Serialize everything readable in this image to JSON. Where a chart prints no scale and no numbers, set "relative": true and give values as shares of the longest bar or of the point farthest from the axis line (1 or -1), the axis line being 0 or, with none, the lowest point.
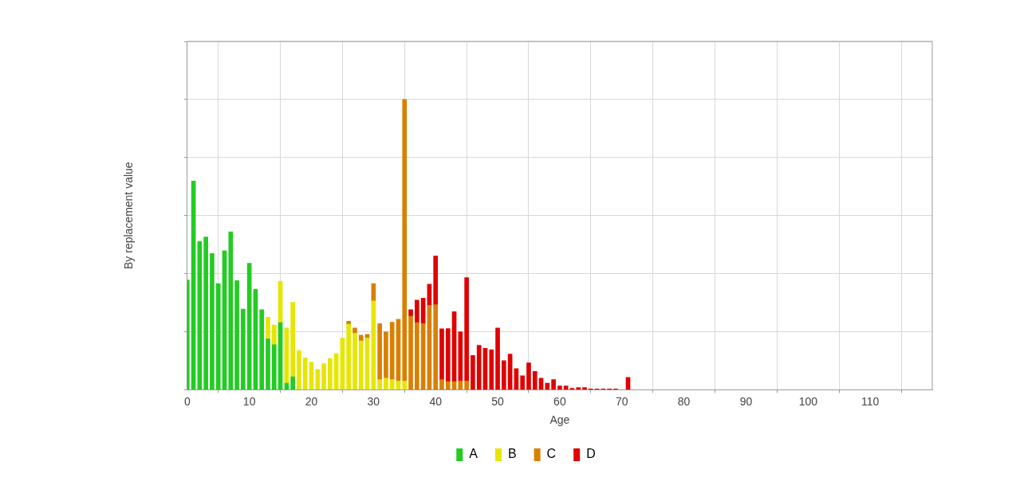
{
  "chart_data": {
    "type": "bar",
    "stacked": true,
    "relative": true,
    "xlabel": "Age",
    "ylabel": "By replacement value",
    "xlim": [
      0,
      120
    ],
    "xticks": [
      0,
      10,
      20,
      30,
      40,
      50,
      60,
      70,
      80,
      90,
      100,
      110
    ],
    "grid": true,
    "legend": "bottom",
    "x": [
      0,
      1,
      2,
      3,
      4,
      5,
      6,
      7,
      8,
      9,
      10,
      11,
      12,
      13,
      14,
      15,
      16,
      17,
      18,
      19,
      20,
      21,
      22,
      23,
      24,
      25,
      26,
      27,
      28,
      29,
      30,
      31,
      32,
      33,
      34,
      35,
      36,
      37,
      38,
      39,
      40,
      41,
      42,
      43,
      44,
      45,
      46,
      47,
      48,
      49,
      50,
      51,
      52,
      53,
      54,
      55,
      56,
      57,
      58,
      59,
      60,
      61,
      62,
      63,
      64,
      65,
      66,
      67,
      68,
      69,
      70,
      71
    ],
    "series": [
      {
        "name": "A",
        "color": "#22cc22",
        "values": [
          0.378,
          0.719,
          0.511,
          0.526,
          0.469,
          0.366,
          0.479,
          0.544,
          0.376,
          0.278,
          0.436,
          0.346,
          0.276,
          0.175,
          0.155,
          0.231,
          0.023,
          0.045,
          null,
          null,
          null,
          null,
          null,
          null,
          null,
          null,
          null,
          null,
          null,
          null,
          null,
          null,
          null,
          null,
          null,
          null,
          null,
          null,
          null,
          null,
          null,
          null,
          null,
          null,
          null,
          null,
          null,
          null,
          null,
          null,
          null,
          null,
          null,
          null,
          null,
          null,
          null,
          null,
          null,
          null,
          null,
          null,
          null,
          null,
          null,
          null,
          null,
          null,
          null,
          null,
          null,
          null
        ]
      },
      {
        "name": "B",
        "color": "#e6e600",
        "values": [
          null,
          null,
          null,
          null,
          null,
          null,
          null,
          null,
          null,
          null,
          null,
          null,
          null,
          0.075,
          0.068,
          0.143,
          0.19,
          0.256,
          0.135,
          0.11,
          0.095,
          0.07,
          0.09,
          0.108,
          0.125,
          0.178,
          0.226,
          0.195,
          0.168,
          0.178,
          0.306,
          0.035,
          0.04,
          0.035,
          0.03,
          0.03,
          null,
          null,
          null,
          null,
          null,
          null,
          null,
          null,
          null,
          null,
          null,
          null,
          null,
          null,
          null,
          null,
          null,
          null,
          null,
          null,
          null,
          null,
          null,
          null,
          null,
          null,
          null,
          null,
          null,
          null,
          null,
          null,
          null,
          null,
          null,
          null
        ]
      },
      {
        "name": "C",
        "color": "#d98000",
        "values": [
          null,
          null,
          null,
          null,
          null,
          null,
          null,
          null,
          null,
          null,
          null,
          null,
          null,
          null,
          null,
          null,
          null,
          null,
          null,
          null,
          null,
          null,
          null,
          null,
          null,
          null,
          0.01,
          0.018,
          0.02,
          0.013,
          0.06,
          0.193,
          0.16,
          0.198,
          0.213,
          0.97,
          0.253,
          0.231,
          0.228,
          0.291,
          0.293,
          0.035,
          0.028,
          0.028,
          0.03,
          0.03,
          null,
          null,
          null,
          null,
          null,
          null,
          null,
          null,
          null,
          null,
          null,
          null,
          null,
          null,
          null,
          null,
          null,
          null,
          null,
          null,
          null,
          null,
          null,
          null,
          null,
          null
        ]
      },
      {
        "name": "D",
        "color": "#e00000",
        "values": [
          null,
          null,
          null,
          null,
          null,
          null,
          null,
          null,
          null,
          null,
          null,
          null,
          null,
          null,
          null,
          null,
          null,
          null,
          null,
          null,
          null,
          null,
          null,
          null,
          null,
          null,
          null,
          null,
          null,
          null,
          null,
          null,
          null,
          null,
          null,
          null,
          0.023,
          0.078,
          0.088,
          0.073,
          0.168,
          0.175,
          0.183,
          0.241,
          0.17,
          0.356,
          0.118,
          0.153,
          0.143,
          0.138,
          0.213,
          0.1,
          0.123,
          0.073,
          0.048,
          0.093,
          0.063,
          0.04,
          0.023,
          0.035,
          0.013,
          0.013,
          0.005,
          0.008,
          0.008,
          0.003,
          0.003,
          0.003,
          0.003,
          0.003,
          null,
          0.043
        ]
      }
    ]
  }
}
